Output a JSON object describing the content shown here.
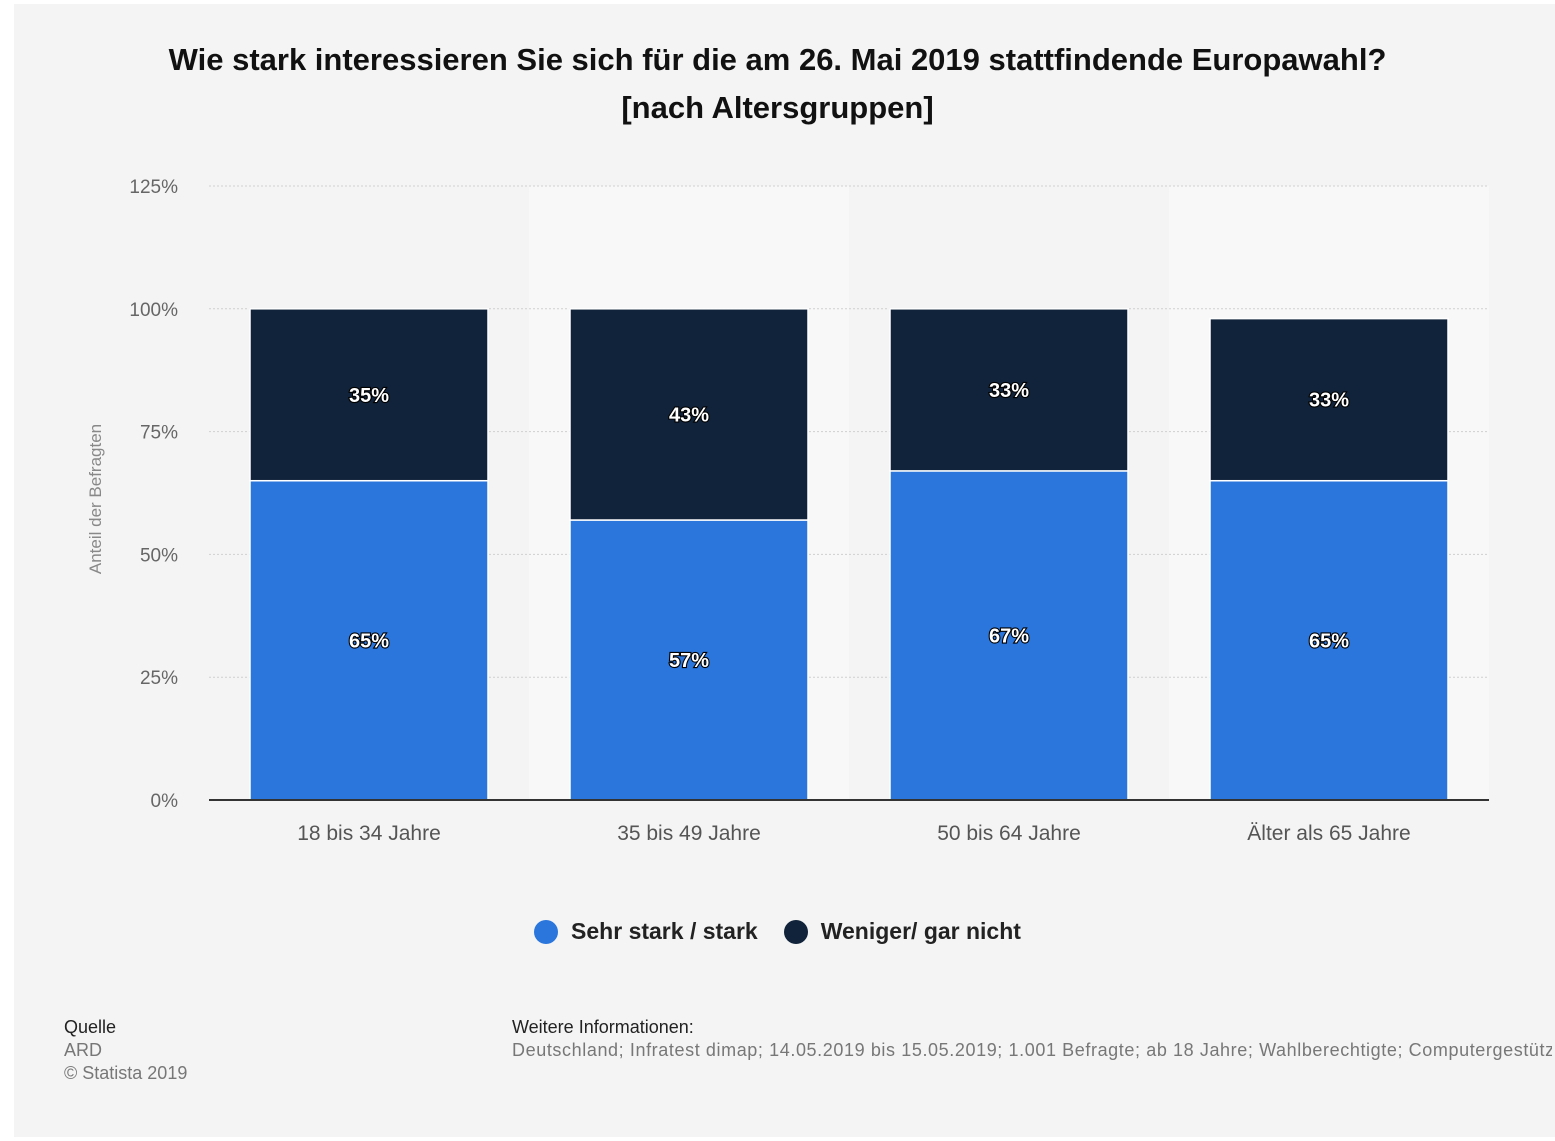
{
  "colors": {
    "strong": "#2a76dd",
    "weak": "#11233a",
    "panel": "#f4f4f4",
    "band": "#f8f8f8",
    "axis_text": "#666666"
  },
  "chart_data": {
    "type": "bar",
    "stacked": true,
    "title": "Wie stark interessieren Sie sich für die am 26. Mai 2019 stattfindende Europawahl?",
    "subtitle": "[nach Altersgruppen]",
    "xlabel": "",
    "ylabel": "Anteil der Befragten",
    "ylim": [
      0,
      125
    ],
    "yticks": [
      "0%",
      "25%",
      "50%",
      "75%",
      "100%",
      "125%"
    ],
    "ytick_values": [
      0,
      25,
      50,
      75,
      100,
      125
    ],
    "categories": [
      "18 bis 34 Jahre",
      "35 bis 49 Jahre",
      "50 bis 64 Jahre",
      "Älter als 65 Jahre"
    ],
    "series": [
      {
        "name": "Sehr stark / stark",
        "values": [
          65,
          57,
          67,
          65
        ],
        "labels": [
          "65%",
          "57%",
          "67%",
          "65%"
        ],
        "color": "#2a76dd"
      },
      {
        "name": "Weniger/ gar nicht",
        "values": [
          35,
          43,
          33,
          33
        ],
        "labels": [
          "35%",
          "43%",
          "33%",
          "33%"
        ],
        "color": "#11233a"
      }
    ],
    "grid": true,
    "legend_position": "bottom"
  },
  "footer": {
    "source_heading": "Quelle",
    "source_name": "ARD",
    "copyright": "© Statista 2019",
    "info_heading": "Weitere Informationen:",
    "info_text": "Deutschland; Infratest dimap; 14.05.2019 bis 15.05.2019; 1.001 Befragte; ab 18 Jahre; Wahlberechtigte; Computergestützte telefonische Befragung (CATI)"
  }
}
